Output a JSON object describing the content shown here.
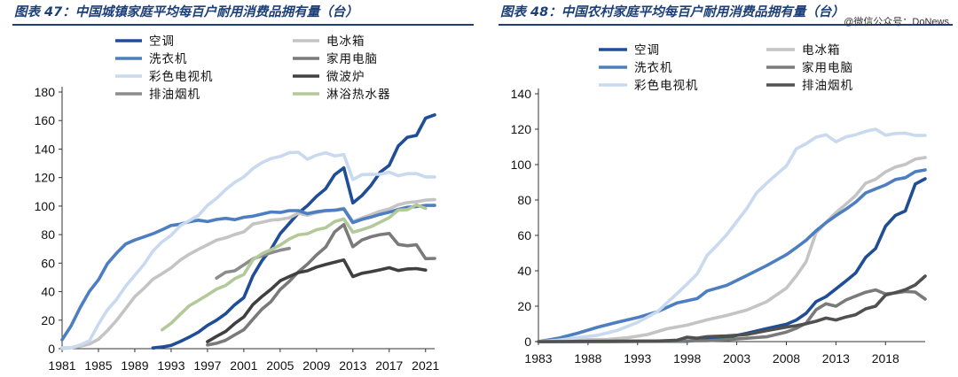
{
  "charts": [
    {
      "title": "图表 47：中国城镇家庭平均每百户耐用消费品拥有量（台）",
      "watermark": "",
      "chart_data": {
        "type": "line",
        "xlim": [
          1981,
          2022
        ],
        "ylim": [
          0,
          180
        ],
        "x_ticks": [
          1981,
          1985,
          1989,
          1993,
          1997,
          2001,
          2005,
          2009,
          2013,
          2017,
          2021
        ],
        "y_ticks": [
          0,
          20,
          40,
          60,
          80,
          100,
          120,
          140,
          160,
          180
        ],
        "legend_position": "top",
        "series": [
          {
            "name": "空调",
            "color": "#1f4e97",
            "x": [
              1991,
              1992,
              1993,
              1994,
              1995,
              1996,
              1997,
              1998,
              1999,
              2000,
              2001,
              2002,
              2003,
              2004,
              2005,
              2006,
              2007,
              2008,
              2009,
              2010,
              2011,
              2012,
              2013,
              2014,
              2015,
              2016,
              2017,
              2018,
              2019,
              2020,
              2021,
              2022
            ],
            "y": [
              0.5,
              1.2,
              2.3,
              5,
              8.1,
              11.6,
              16.3,
              20,
              24.5,
              30.8,
              35.8,
              51.1,
              61.8,
              69.8,
              80.7,
              87.8,
              95.1,
              100.3,
              106.8,
              112.1,
              122,
              126.8,
              102.2,
              107.4,
              114.6,
              123.7,
              128.6,
              142.2,
              148.3,
              149.6,
              161.7,
              164
            ]
          },
          {
            "name": "电冰箱",
            "color": "#c4c4c4",
            "x": [
              1981,
              1982,
              1983,
              1984,
              1985,
              1986,
              1987,
              1988,
              1989,
              1990,
              1991,
              1992,
              1993,
              1994,
              1995,
              1996,
              1997,
              1998,
              1999,
              2000,
              2001,
              2002,
              2003,
              2004,
              2005,
              2006,
              2007,
              2008,
              2009,
              2010,
              2011,
              2012,
              2013,
              2014,
              2015,
              2016,
              2017,
              2018,
              2019,
              2020,
              2021,
              2022
            ],
            "y": [
              0.2,
              0.7,
              1.7,
              3.2,
              6.6,
              12.7,
              19.9,
              28.1,
              36.5,
              42.3,
              48.7,
              52.6,
              56.7,
              62.1,
              66.2,
              69.7,
              72.9,
              76.1,
              77.7,
              80.1,
              81.9,
              87.4,
              88.7,
              90.2,
              90.7,
              91.8,
              95,
              93.6,
              95.4,
              96.6,
              97.2,
              98.5,
              89.2,
              91.7,
              94,
              96.4,
              98,
              100.9,
              102.5,
              103.1,
              104.2,
              104.5
            ]
          },
          {
            "name": "洗衣机",
            "color": "#4d7fc0",
            "x": [
              1981,
              1982,
              1983,
              1984,
              1985,
              1986,
              1987,
              1988,
              1989,
              1990,
              1991,
              1992,
              1993,
              1994,
              1995,
              1996,
              1997,
              1998,
              1999,
              2000,
              2001,
              2002,
              2003,
              2004,
              2005,
              2006,
              2007,
              2008,
              2009,
              2010,
              2011,
              2012,
              2013,
              2014,
              2015,
              2016,
              2017,
              2018,
              2019,
              2020,
              2021,
              2022
            ],
            "y": [
              6.3,
              16.1,
              29,
              40.1,
              48.3,
              59.7,
              67.1,
              73.4,
              76.2,
              78.4,
              80.6,
              83.4,
              86.4,
              87.3,
              89,
              90.1,
              89.1,
              90.6,
              91.4,
              90.5,
              92.2,
              92.9,
              94.4,
              95.9,
              95.5,
              96.8,
              96.8,
              94.7,
              96,
              96.9,
              97.1,
              98,
              88.4,
              90.7,
              92.3,
              94.2,
              95.7,
              97.7,
              99.2,
              99.7,
              100.5,
              100.5
            ]
          },
          {
            "name": "家用电脑",
            "color": "#7a7a7a",
            "x": [
              1997,
              1998,
              1999,
              2000,
              2001,
              2002,
              2003,
              2004,
              2005,
              2006,
              2007,
              2008,
              2009,
              2010,
              2011,
              2012,
              2013,
              2014,
              2015,
              2016,
              2017,
              2018,
              2019,
              2020,
              2021,
              2022
            ],
            "y": [
              2.6,
              3.8,
              5.9,
              9.7,
              13.3,
              20.6,
              27.8,
              33.1,
              41.5,
              47.2,
              53.8,
              59.3,
              65.7,
              71.2,
              81.9,
              87,
              71.5,
              76.2,
              78.5,
              80,
              80.8,
              73.1,
              72.2,
              72.9,
              63.1,
              63.3
            ]
          },
          {
            "name": "彩色电视机",
            "color": "#c9d9ee",
            "x": [
              1981,
              1982,
              1983,
              1984,
              1985,
              1986,
              1987,
              1988,
              1989,
              1990,
              1991,
              1992,
              1993,
              1994,
              1995,
              1996,
              1997,
              1998,
              1999,
              2000,
              2001,
              2002,
              2003,
              2004,
              2005,
              2006,
              2007,
              2008,
              2009,
              2010,
              2011,
              2012,
              2013,
              2014,
              2015,
              2016,
              2017,
              2018,
              2019,
              2020,
              2021,
              2022
            ],
            "y": [
              0.6,
              0.8,
              2.6,
              5.4,
              17.2,
              27.4,
              34.6,
              43.9,
              51.5,
              59,
              68.4,
              74.9,
              79.5,
              86.2,
              89.8,
              93.5,
              100.5,
              105.4,
              111.6,
              116.6,
              120.5,
              126.4,
              130.5,
              133.4,
              134.8,
              137.4,
              137.8,
              132.9,
              135.7,
              137.4,
              135.2,
              136.1,
              118.6,
              122,
              122.3,
              122.3,
              123.8,
              121.3,
              122.8,
              122.8,
              120.5,
              120.5
            ]
          },
          {
            "name": "微波炉",
            "color": "#404040",
            "x": [
              1997,
              1998,
              1999,
              2000,
              2001,
              2002,
              2003,
              2004,
              2005,
              2006,
              2007,
              2008,
              2009,
              2010,
              2011,
              2012,
              2013,
              2014,
              2015,
              2016,
              2017,
              2018,
              2019,
              2020,
              2021
            ],
            "y": [
              4.9,
              8.6,
              12.1,
              17.6,
              22.3,
              30.9,
              36.6,
              41.7,
              47.6,
              50.6,
              53.4,
              54.6,
              57.2,
              59,
              60.7,
              62.2,
              50.6,
              52.9,
              54,
              55.3,
              56.8,
              54.8,
              55.9,
              56.2,
              55.1
            ]
          },
          {
            "name": "排油烟机",
            "color": "#8c8c8c",
            "x": [
              1998,
              1999,
              2000,
              2001,
              2002,
              2003,
              2004,
              2005,
              2006
            ],
            "y": [
              49.5,
              53.6,
              54.6,
              58.8,
              63,
              65.1,
              67.3,
              69.1,
              70.3
            ]
          },
          {
            "name": "淋浴热水器",
            "color": "#b4c99a",
            "x": [
              1992,
              1993,
              1994,
              1995,
              1996,
              1997,
              1998,
              1999,
              2000,
              2001,
              2002,
              2003,
              2004,
              2005,
              2006,
              2007,
              2008,
              2009,
              2010,
              2011,
              2012,
              2013,
              2014,
              2015,
              2016,
              2017,
              2018,
              2019,
              2020,
              2021
            ],
            "y": [
              13.2,
              17.8,
              24.1,
              30.1,
              33.8,
              37.7,
              41.8,
              44.4,
              49.1,
              52,
              62.4,
              66.6,
              69.4,
              72.7,
              76.9,
              79.8,
              80.6,
              83.4,
              84.8,
              89.1,
              91,
              81.7,
              83.4,
              85.6,
              88.7,
              91.9,
              97.2,
              97.5,
              101,
              98.3
            ]
          }
        ]
      }
    },
    {
      "title": "图表 48：中国农村家庭平均每百户耐用消费品拥有量（台）",
      "watermark": "@微信公众号：DoNews",
      "chart_data": {
        "type": "line",
        "xlim": [
          1983,
          2022
        ],
        "ylim": [
          0,
          140
        ],
        "x_ticks": [
          1983,
          1988,
          1993,
          1998,
          2003,
          2008,
          2013,
          2018
        ],
        "y_ticks": [
          0,
          20,
          40,
          60,
          80,
          100,
          120,
          140
        ],
        "legend_position": "top",
        "series": [
          {
            "name": "空调",
            "color": "#1f4e97",
            "x": [
              1983,
              1990,
              1995,
              1998,
              2000,
              2002,
              2004,
              2006,
              2008,
              2009,
              2010,
              2011,
              2012,
              2013,
              2014,
              2015,
              2016,
              2017,
              2018,
              2019,
              2020,
              2021,
              2022
            ],
            "y": [
              0,
              0,
              0.2,
              0.2,
              1.3,
              2.3,
              4.7,
              7.3,
              9.8,
              12.2,
              16,
              22.6,
              25.4,
              29.8,
              34.2,
              38.8,
              47.6,
              52.6,
              65.2,
              71.3,
              73.8,
              89,
              92
            ]
          },
          {
            "name": "电冰箱",
            "color": "#c4c4c4",
            "x": [
              1983,
              1986,
              1988,
              1990,
              1992,
              1994,
              1996,
              1998,
              2000,
              2002,
              2004,
              2006,
              2008,
              2009,
              2010,
              2011,
              2012,
              2013,
              2014,
              2015,
              2016,
              2017,
              2018,
              2019,
              2020,
              2021,
              2022
            ],
            "y": [
              0,
              0.5,
              1.1,
              1.2,
              2.2,
              4,
              7.3,
              9.3,
              12.3,
              14.8,
              17.8,
              22.5,
              30.2,
              37.1,
              45.2,
              61.5,
              67.3,
              72.9,
              77.6,
              82.6,
              89.5,
              91.7,
              95.9,
              98.6,
              100.1,
              103.1,
              104
            ]
          },
          {
            "name": "洗衣机",
            "color": "#4d7fc0",
            "x": [
              1983,
              1985,
              1987,
              1989,
              1991,
              1993,
              1995,
              1997,
              1999,
              2000,
              2002,
              2004,
              2006,
              2008,
              2009,
              2010,
              2011,
              2012,
              2013,
              2014,
              2015,
              2016,
              2017,
              2018,
              2019,
              2020,
              2021,
              2022
            ],
            "y": [
              0,
              1.9,
              4.8,
              8.2,
              11,
              13.6,
              16.9,
              21.9,
              24.3,
              28.6,
              31.8,
              37.3,
              42.9,
              49.1,
              53.1,
              57.3,
              62.6,
              67.2,
              71.2,
              74.8,
              78.8,
              84,
              86.3,
              88.5,
              91.6,
              92.6,
              96,
              97
            ]
          },
          {
            "name": "家用电脑",
            "color": "#7a7a7a",
            "x": [
              1983,
              2000,
              2002,
              2004,
              2006,
              2008,
              2009,
              2010,
              2011,
              2012,
              2013,
              2014,
              2015,
              2016,
              2017,
              2018,
              2019,
              2020,
              2021,
              2022
            ],
            "y": [
              0,
              0.5,
              1.1,
              1.9,
              2.7,
              5.4,
              7.5,
              10.4,
              18,
              21.4,
              20,
              23.5,
              25.7,
              27.9,
              29.2,
              26.9,
              27.5,
              28.3,
              28,
              24
            ]
          },
          {
            "name": "彩色电视机",
            "color": "#c9d9ee",
            "x": [
              1983,
              1985,
              1987,
              1989,
              1991,
              1993,
              1995,
              1997,
              1998,
              1999,
              2000,
              2001,
              2002,
              2003,
              2004,
              2005,
              2006,
              2007,
              2008,
              2009,
              2010,
              2011,
              2012,
              2013,
              2014,
              2015,
              2016,
              2017,
              2018,
              2019,
              2020,
              2021,
              2022
            ],
            "y": [
              0,
              0.8,
              2.3,
              3.6,
              6.4,
              10.9,
              16.9,
              27.3,
              32.6,
              38.2,
              48.7,
              54.4,
              60.5,
              67.8,
              75.1,
              84,
              89.4,
              94.4,
              99.2,
              108.9,
              111.8,
              115.5,
              116.9,
              112.9,
              115.6,
              116.9,
              118.8,
              120,
              116.6,
              117.6,
              117.8,
              116.5,
              116.5
            ]
          },
          {
            "name": "排油烟机",
            "color": "#505050",
            "x": [
              1983,
              1995,
              1997,
              1998,
              1999,
              2000,
              2002,
              2004,
              2006,
              2008,
              2009,
              2010,
              2011,
              2012,
              2013,
              2014,
              2015,
              2016,
              2017,
              2018,
              2019,
              2020,
              2021,
              2022
            ],
            "y": [
              0,
              0.3,
              0.8,
              2.5,
              1.9,
              2.8,
              3.2,
              4,
              6.2,
              8.2,
              9,
              10.1,
              11.5,
              13.3,
              12.2,
              13.9,
              15.2,
              18.5,
              20,
              26.3,
              27.7,
              29.3,
              32,
              37
            ]
          }
        ]
      }
    }
  ]
}
